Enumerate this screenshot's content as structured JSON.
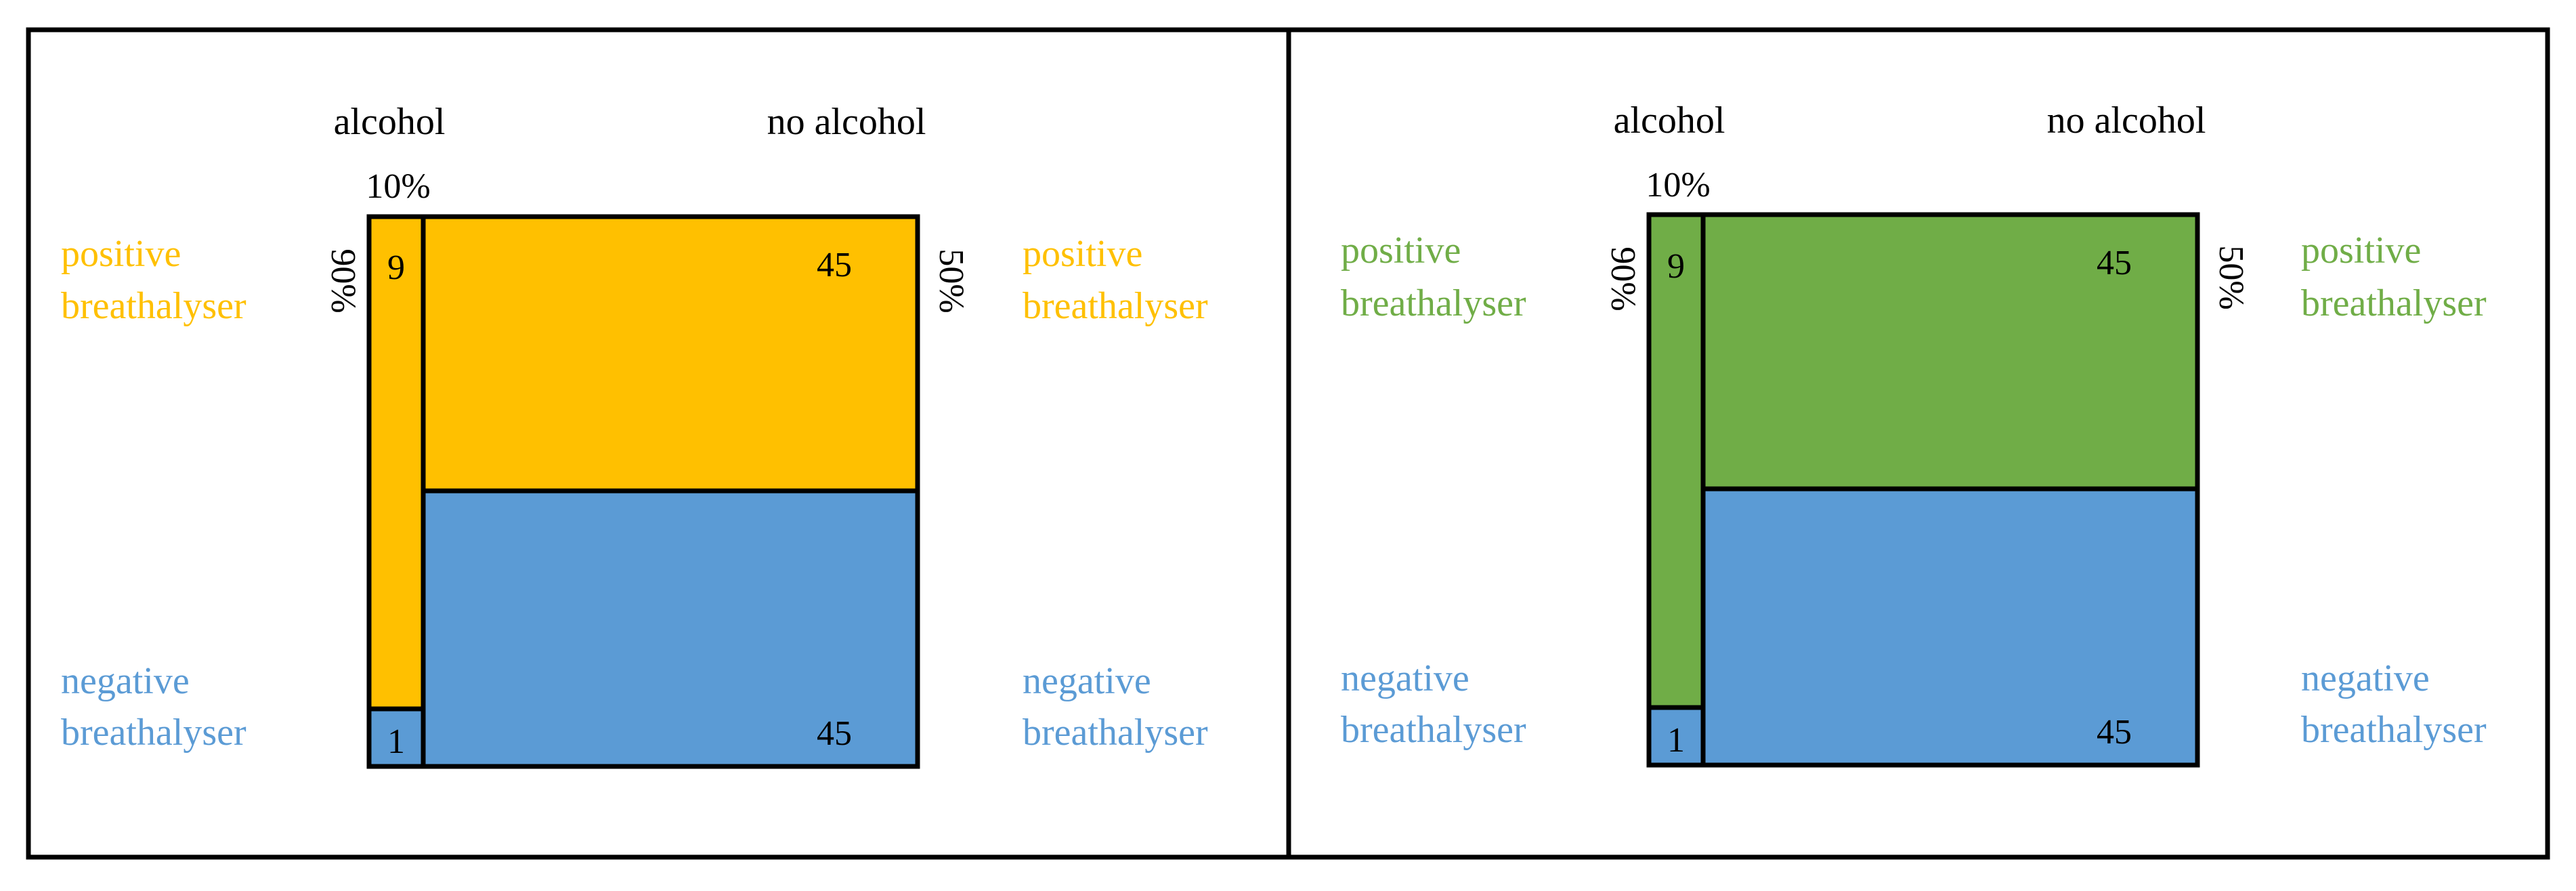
{
  "colors": {
    "frame": "#000000",
    "negative_fill": "#5B9BD5"
  },
  "panels": [
    {
      "accent_color": "#FFC000",
      "header_alcohol": "alcohol",
      "header_no_alcohol": "no alcohol",
      "alcohol_width_pct": "10%",
      "left_side_pct": "90%",
      "right_side_pct": "50%",
      "label_positive_line1": "positive",
      "label_positive_line2": "breathalyser",
      "label_negative_line1": "negative",
      "label_negative_line2": "breathalyser",
      "cell_alcohol_positive": "9",
      "cell_alcohol_negative": "1",
      "cell_noalcohol_positive": "45",
      "cell_noalcohol_negative": "45"
    },
    {
      "accent_color": "#70AD47",
      "header_alcohol": "alcohol",
      "header_no_alcohol": "no alcohol",
      "alcohol_width_pct": "10%",
      "left_side_pct": "90%",
      "right_side_pct": "50%",
      "label_positive_line1": "positive",
      "label_positive_line2": "breathalyser",
      "label_negative_line1": "negative",
      "label_negative_line2": "breathalyser",
      "cell_alcohol_positive": "9",
      "cell_alcohol_negative": "1",
      "cell_noalcohol_positive": "45",
      "cell_noalcohol_negative": "45"
    }
  ]
}
